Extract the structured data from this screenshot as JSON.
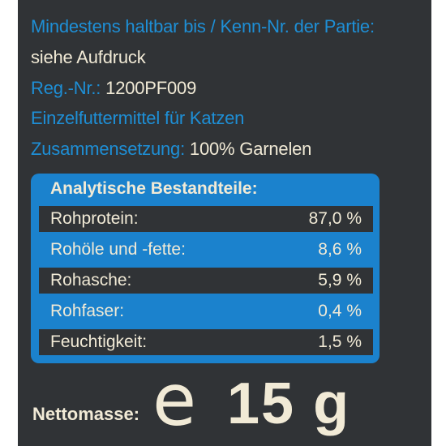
{
  "header": {
    "line1": "Mindestens haltbar bis / Kenn-Nr. der Partie:",
    "line2": "siehe Aufdruck",
    "reg_label": "Reg.-Nr.:",
    "reg_value": "1200PF009",
    "product_type": "Einzelfuttermittel für Katzen",
    "composition_label": "Zusammensetzung:",
    "composition_value": "100% Garnelen"
  },
  "analytics": {
    "title": "Analytische Bestandteile:",
    "rows": [
      {
        "label": "Rohprotein:",
        "value": "87,0 %"
      },
      {
        "label": "Rohöle und -fette:",
        "value": "8,6 %"
      },
      {
        "label": "Rohasche:",
        "value": "5,9 %"
      },
      {
        "label": "Rohfaser:",
        "value": "0,4 %"
      },
      {
        "label": "Feuchtigkeit:",
        "value": "1,5 %"
      }
    ]
  },
  "net": {
    "label": "Nettomasse:",
    "e_mark": "e",
    "weight": "15 g"
  },
  "colors": {
    "background": "#303336",
    "accent_blue": "#1b82cd",
    "text_blue": "#1e8fd6",
    "text_cream": "#f1ead6"
  }
}
